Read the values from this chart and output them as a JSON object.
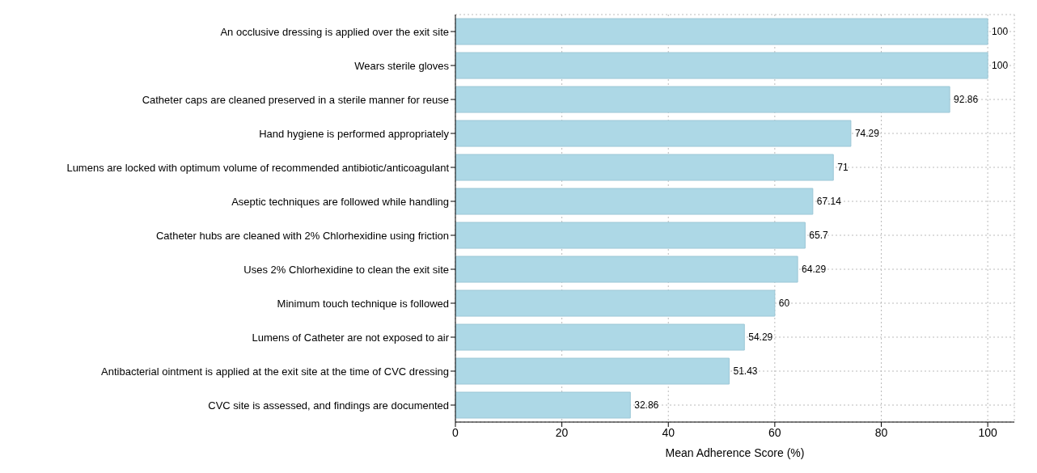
{
  "chart_data": {
    "type": "bar",
    "orientation": "horizontal",
    "xlabel": "Mean Adherence Score (%)",
    "categories": [
      "An occlusive dressing is applied over the exit site",
      "Wears sterile gloves",
      "Catheter caps are cleaned preserved in a sterile manner for reuse",
      "Hand hygiene is performed appropriately",
      "Lumens are locked with optimum volume of recommended antibiotic/anticoagulant",
      "Aseptic techniques are followed while handling",
      "Catheter hubs are cleaned with 2% Chlorhexidine using friction",
      "Uses 2% Chlorhexidine to clean the exit site",
      "Minimum touch technique is followed",
      "Lumens of Catheter are not exposed to air",
      "Antibacterial ointment is applied at the exit site at the time of CVC dressing",
      "CVC site is assessed, and findings are documented"
    ],
    "values": [
      100,
      100,
      92.86,
      74.29,
      71,
      67.14,
      65.7,
      64.29,
      60,
      54.29,
      51.43,
      32.86
    ],
    "color": "#add8e6",
    "xlim": [
      0,
      105
    ],
    "xticks": [
      0,
      20,
      40,
      60,
      80,
      100
    ],
    "grid": true,
    "data_labels": true
  }
}
